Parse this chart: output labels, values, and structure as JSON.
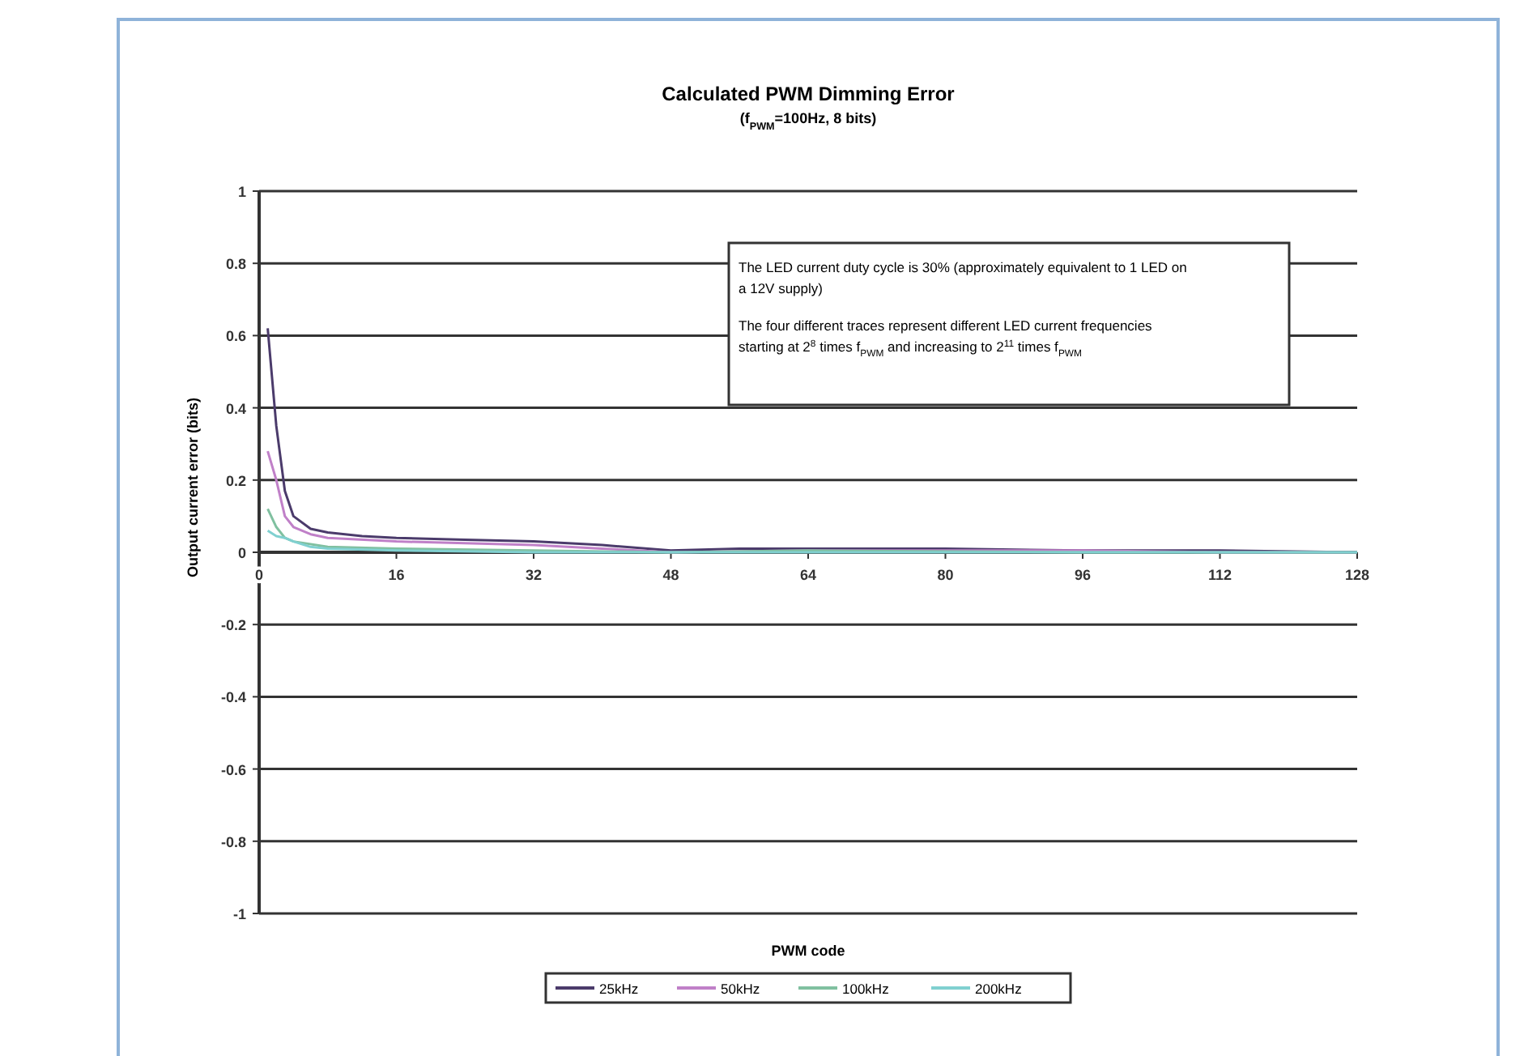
{
  "chart_data": {
    "type": "line",
    "title": "Calculated PWM Dimming Error",
    "subtitle": "(f$_{PWM}$=100Hz, 8 bits)",
    "xlabel": "PWM code",
    "ylabel": "Output current error (bits)",
    "annotations": [
      "The LED current duty cycle is 30% (approximately equivalent to 1 LED on a 12V supply)",
      "The four different traces represent different LED current frequencies starting at 2$^{8}$ times f$_{PWM}$ and increasing to 2$^{11}$ times f$_{PWM}$"
    ],
    "xlim": [
      0,
      128
    ],
    "xticks": [
      0,
      16,
      32,
      48,
      64,
      80,
      96,
      112,
      128
    ],
    "ylim": [
      -1,
      1
    ],
    "yticks": [
      -1,
      -0.8,
      -0.6,
      -0.4,
      -0.2,
      0,
      0.2,
      0.4,
      0.6,
      0.8,
      1
    ],
    "grid": "y",
    "legend": "bottom",
    "marker": "none",
    "line_style": "solid",
    "series": [
      {
        "name": "25kHz",
        "color": "#4b3b6b",
        "x": [
          1,
          2,
          3,
          4,
          6,
          8,
          12,
          16,
          24,
          32,
          40,
          48,
          56,
          64,
          80,
          96,
          112,
          128
        ],
        "values": [
          0.62,
          0.35,
          0.17,
          0.1,
          0.065,
          0.055,
          0.045,
          0.04,
          0.035,
          0.03,
          0.02,
          0.005,
          0.01,
          0.01,
          0.01,
          0.005,
          0.005,
          0
        ]
      },
      {
        "name": "50kHz",
        "color": "#c080c8",
        "x": [
          1,
          2,
          3,
          4,
          6,
          8,
          16,
          24,
          32,
          40,
          48,
          64,
          80,
          96,
          112,
          128
        ],
        "values": [
          0.28,
          0.2,
          0.1,
          0.07,
          0.05,
          0.04,
          0.03,
          0.025,
          0.02,
          0.01,
          0,
          0.005,
          0.005,
          0.005,
          0,
          0
        ]
      },
      {
        "name": "100kHz",
        "color": "#80c0a0",
        "x": [
          1,
          2,
          3,
          4,
          8,
          16,
          32,
          48,
          64,
          96,
          128
        ],
        "values": [
          0.12,
          0.07,
          0.04,
          0.03,
          0.015,
          0.01,
          0.005,
          0,
          0.005,
          0,
          0
        ]
      },
      {
        "name": "200kHz",
        "color": "#80d0d0",
        "x": [
          1,
          2,
          3,
          4,
          6,
          8,
          16,
          32,
          64,
          96,
          128
        ],
        "values": [
          0.06,
          0.045,
          0.04,
          0.03,
          0.015,
          0.01,
          0.005,
          0,
          0,
          0,
          0
        ]
      }
    ]
  }
}
